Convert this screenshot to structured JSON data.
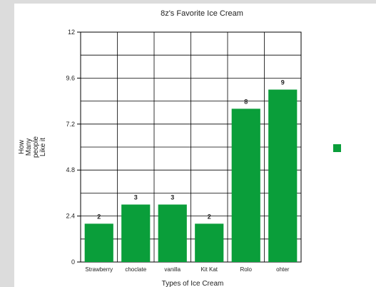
{
  "chart_data": {
    "type": "bar",
    "title": "8z's Favorite Ice Cream",
    "xlabel": "Types of Ice Cream",
    "ylabel_lines": [
      "How",
      "Many",
      "people",
      "Like it"
    ],
    "categories": [
      "Strawberry",
      "choclate",
      "vanilla",
      "Kit Kat",
      "Rolo",
      "ohter"
    ],
    "values": [
      2,
      3,
      3,
      2,
      8,
      9
    ],
    "yticks": [
      "0",
      "2.4",
      "4.8",
      "7.2",
      "9.6",
      "12"
    ],
    "ylim": [
      0,
      12
    ],
    "grid": true,
    "legend_position": "right",
    "colors": {
      "bar": "#0a9e3a",
      "grid": "#000000",
      "background": "#dcdcdc",
      "panel": "#ffffff"
    }
  }
}
